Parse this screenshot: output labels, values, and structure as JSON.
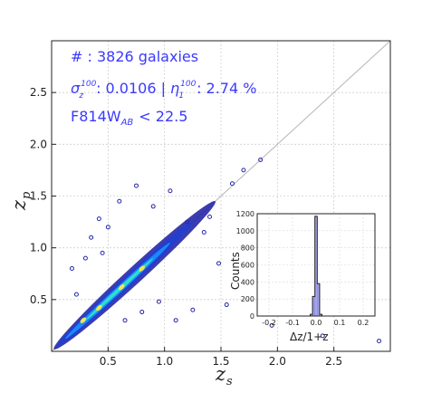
{
  "chart_data": [
    {
      "type": "scatter",
      "xlabel": "z",
      "xlabel_sub": "s",
      "ylabel": "z",
      "ylabel_sub": "p",
      "xlim": [
        0.0,
        3.0
      ],
      "ylim": [
        0.0,
        3.0
      ],
      "xticks": [
        "0.5",
        "1.0",
        "1.5",
        "2.0",
        "2.5"
      ],
      "yticks": [
        "0.5",
        "1.0",
        "1.5",
        "2.0",
        "2.5"
      ],
      "grid": true,
      "reference_line": "one-to-one (z_p = z_s)",
      "annotations": {
        "count": "# : 3826 galaxies",
        "sigma_symbol": "σ",
        "sigma_sub": "z",
        "sigma_sup": "100",
        "sigma_value": ": 0.0106 |",
        "eta_symbol": "η",
        "eta_sub": "1",
        "eta_sup": "100",
        "eta_value": ": 2.74 %",
        "mag_main": "F814W",
        "mag_sub": "AB",
        "mag_cut": "< 22.5"
      },
      "density_color": "#2727a8",
      "core_colors": [
        "#1a8cff",
        "#33e0c8",
        "#f2e84b"
      ],
      "outliers": [
        {
          "x": 0.35,
          "y": 1.1
        },
        {
          "x": 0.42,
          "y": 1.28
        },
        {
          "x": 0.6,
          "y": 1.45
        },
        {
          "x": 0.75,
          "y": 1.6
        },
        {
          "x": 0.9,
          "y": 1.4
        },
        {
          "x": 1.05,
          "y": 1.55
        },
        {
          "x": 0.3,
          "y": 0.9
        },
        {
          "x": 0.22,
          "y": 0.55
        },
        {
          "x": 0.18,
          "y": 0.8
        },
        {
          "x": 1.2,
          "y": 1.25
        },
        {
          "x": 1.4,
          "y": 1.3
        },
        {
          "x": 1.48,
          "y": 0.85
        },
        {
          "x": 1.55,
          "y": 0.45
        },
        {
          "x": 1.25,
          "y": 0.4
        },
        {
          "x": 1.1,
          "y": 0.3
        },
        {
          "x": 0.95,
          "y": 0.48
        },
        {
          "x": 1.6,
          "y": 1.62
        },
        {
          "x": 1.7,
          "y": 1.75
        },
        {
          "x": 1.85,
          "y": 1.85
        },
        {
          "x": 1.95,
          "y": 0.25
        },
        {
          "x": 2.4,
          "y": 0.15
        },
        {
          "x": 2.9,
          "y": 0.1
        },
        {
          "x": 0.5,
          "y": 1.2
        },
        {
          "x": 0.65,
          "y": 0.3
        },
        {
          "x": 0.8,
          "y": 0.38
        },
        {
          "x": 1.35,
          "y": 1.15
        },
        {
          "x": 0.45,
          "y": 0.95
        }
      ]
    },
    {
      "type": "histogram",
      "xlabel": "Δz/1+z",
      "ylabel": "Counts",
      "xlim": [
        -0.25,
        0.25
      ],
      "ylim": [
        0,
        1200
      ],
      "xticks": [
        "-0.2",
        "-0.1",
        "0.0",
        "0.1",
        "0.2"
      ],
      "yticks": [
        "0",
        "200",
        "400",
        "600",
        "800",
        "1000",
        "1200"
      ],
      "bin_edges": [
        -0.025,
        -0.015,
        -0.005,
        0.005,
        0.015,
        0.025
      ],
      "bar_values": [
        20,
        230,
        1170,
        380,
        20
      ],
      "fill_color": "#a6a6ee",
      "line_color": "#222222"
    }
  ]
}
